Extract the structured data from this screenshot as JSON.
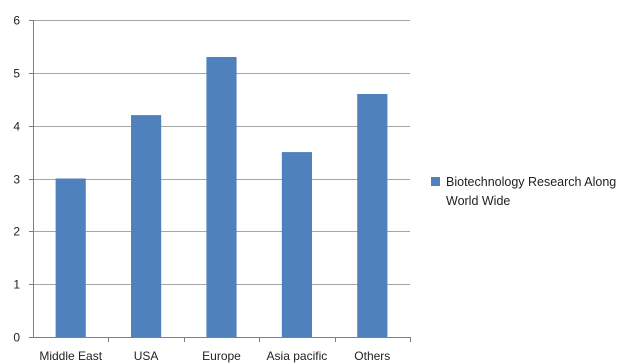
{
  "chart_data": {
    "type": "bar",
    "title": "",
    "xlabel": "",
    "ylabel": "",
    "categories": [
      "Middle East",
      "USA",
      "Europe",
      "Asia pacific",
      "Others"
    ],
    "series": [
      {
        "name": "Biotechnology Research Along World Wide",
        "values": [
          3.0,
          4.2,
          5.3,
          3.5,
          4.6
        ]
      }
    ],
    "ylim": [
      0,
      6
    ],
    "yticks": [
      "0",
      "1",
      "2",
      "3",
      "4",
      "5",
      "6"
    ],
    "grid": true,
    "legend_position": "right",
    "colors": {
      "bar": "#4f81bd",
      "grid": "#a6a6a6",
      "axis": "#808080"
    }
  },
  "legend": {
    "label": "Biotechnology Research Along World Wide"
  }
}
